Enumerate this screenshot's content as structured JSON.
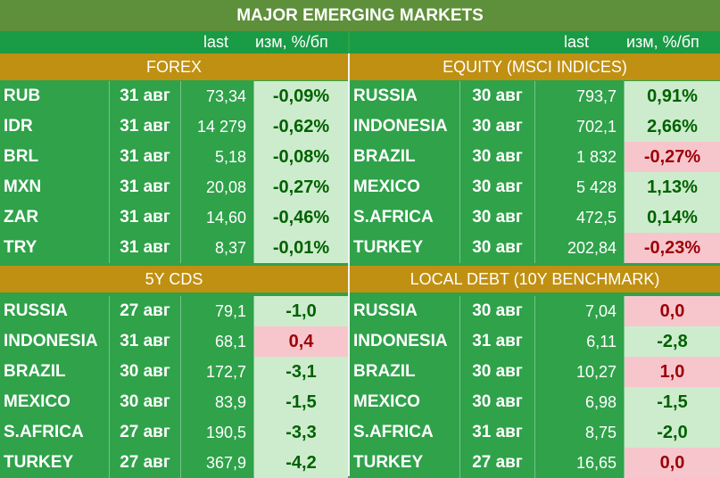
{
  "title": "MAJOR   EMERGING MARKETS",
  "subheader": {
    "last": "last",
    "change": "изм, %/бп"
  },
  "sections": {
    "forex": {
      "title": "FOREX",
      "rows": [
        {
          "name": "RUB",
          "date": "31 авг",
          "value": "73,34",
          "change": "-0,09%",
          "tone": "pos"
        },
        {
          "name": "IDR",
          "date": "31 авг",
          "value": "14 279",
          "change": "-0,62%",
          "tone": "pos"
        },
        {
          "name": "BRL",
          "date": "31 авг",
          "value": "5,18",
          "change": "-0,08%",
          "tone": "pos"
        },
        {
          "name": "MXN",
          "date": "31 авг",
          "value": "20,08",
          "change": "-0,27%",
          "tone": "pos"
        },
        {
          "name": "ZAR",
          "date": "31 авг",
          "value": "14,60",
          "change": "-0,46%",
          "tone": "pos"
        },
        {
          "name": "TRY",
          "date": "31 авг",
          "value": "8,37",
          "change": "-0,01%",
          "tone": "pos"
        }
      ]
    },
    "equity": {
      "title": "EQUITY (MSCI INDICES)",
      "rows": [
        {
          "name": "RUSSIA",
          "date": "30 авг",
          "value": "793,7",
          "change": "0,91%",
          "tone": "pos"
        },
        {
          "name": "INDONESIA",
          "date": "30 авг",
          "value": "702,1",
          "change": "2,66%",
          "tone": "pos"
        },
        {
          "name": "BRAZIL",
          "date": "30 авг",
          "value": "1 832",
          "change": "-0,27%",
          "tone": "neg"
        },
        {
          "name": "MEXICO",
          "date": "30 авг",
          "value": "5 428",
          "change": "1,13%",
          "tone": "pos"
        },
        {
          "name": "S.AFRICA",
          "date": "30 авг",
          "value": "472,5",
          "change": "0,14%",
          "tone": "pos"
        },
        {
          "name": "TURKEY",
          "date": "30 авг",
          "value": "202,84",
          "change": "-0,23%",
          "tone": "neg"
        }
      ]
    },
    "cds": {
      "title": "5Y CDS",
      "rows": [
        {
          "name": "RUSSIA",
          "date": "27 авг",
          "value": "79,1",
          "change": "-1,0",
          "tone": "pos"
        },
        {
          "name": "INDONESIA",
          "date": "31 авг",
          "value": "68,1",
          "change": "0,4",
          "tone": "neg"
        },
        {
          "name": "BRAZIL",
          "date": "30 авг",
          "value": "172,7",
          "change": "-3,1",
          "tone": "pos"
        },
        {
          "name": "MEXICO",
          "date": "30 авг",
          "value": "83,9",
          "change": "-1,5",
          "tone": "pos"
        },
        {
          "name": "S.AFRICA",
          "date": "27 авг",
          "value": "190,5",
          "change": "-3,3",
          "tone": "pos"
        },
        {
          "name": "TURKEY",
          "date": "27 авг",
          "value": "367,9",
          "change": "-4,2",
          "tone": "pos"
        }
      ]
    },
    "debt": {
      "title": "LOCAL DEBT (10Y BENCHMARK)",
      "rows": [
        {
          "name": "RUSSIA",
          "date": "30 авг",
          "value": "7,04",
          "change": "0,0",
          "tone": "neg"
        },
        {
          "name": "INDONESIA",
          "date": "31 авг",
          "value": "6,11",
          "change": "-2,8",
          "tone": "pos"
        },
        {
          "name": "BRAZIL",
          "date": "30 авг",
          "value": "10,27",
          "change": "1,0",
          "tone": "neg"
        },
        {
          "name": "MEXICO",
          "date": "30 авг",
          "value": "6,98",
          "change": "-1,5",
          "tone": "pos"
        },
        {
          "name": "S.AFRICA",
          "date": "31 авг",
          "value": "8,75",
          "change": "-2,0",
          "tone": "pos"
        },
        {
          "name": "TURKEY",
          "date": "27 авг",
          "value": "16,65",
          "change": "0,0",
          "tone": "neg"
        }
      ]
    }
  }
}
